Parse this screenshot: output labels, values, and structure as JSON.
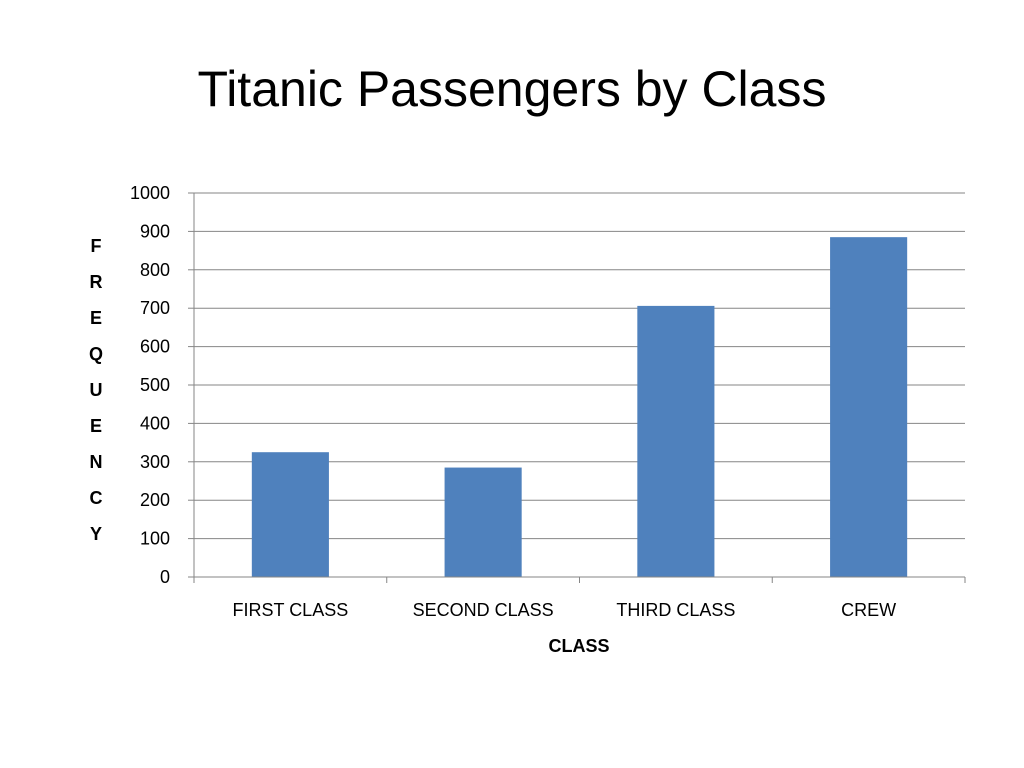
{
  "slide": {
    "title": "Titanic Passengers by Class"
  },
  "chart_data": {
    "type": "bar",
    "title": "",
    "categories": [
      "FIRST CLASS",
      "SECOND CLASS",
      "THIRD CLASS",
      "CREW"
    ],
    "values": [
      325,
      285,
      706,
      885
    ],
    "xlabel": "CLASS",
    "ylabel": "FREQUENCY",
    "ylim": [
      0,
      1000
    ],
    "yticks": [
      "0",
      "100",
      "200",
      "300",
      "400",
      "500",
      "600",
      "700",
      "800",
      "900",
      "1000"
    ],
    "grid": true,
    "legend": "none",
    "bar_color": "#4F81BD",
    "grid_color": "#868686"
  }
}
